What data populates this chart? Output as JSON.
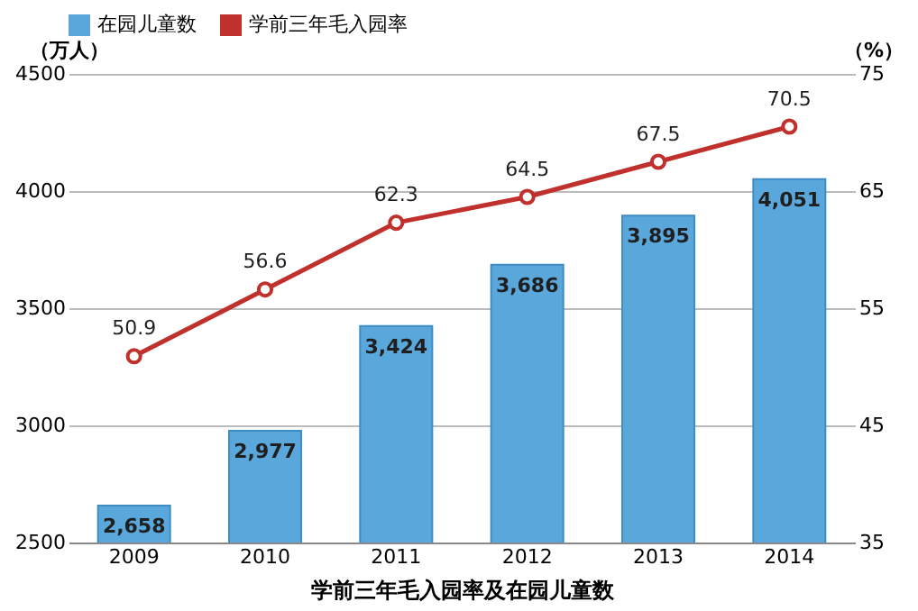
{
  "chart_data": {
    "type": "bar",
    "xlabel": "学前三年毛入园率及在园儿童数",
    "ylabel": "（万人）",
    "y2label": "（%）",
    "categories": [
      "2009",
      "2010",
      "2011",
      "2012",
      "2013",
      "2014"
    ],
    "series": [
      {
        "name": "在园儿童数",
        "color": "#5aa7dc",
        "values": [
          2658,
          2977,
          3424,
          3686,
          3895,
          4051
        ],
        "value_labels": [
          "2,658",
          "2,977",
          "3,424",
          "3,686",
          "3,895",
          "4,051"
        ]
      },
      {
        "name": "学前三年毛入园率",
        "type": "line",
        "axis": "y2",
        "color": "#c0302c",
        "marker": "circle",
        "values": [
          50.9,
          56.6,
          62.3,
          64.5,
          67.5,
          70.5
        ],
        "data_labels": true
      }
    ],
    "ylim": [
      2500,
      4500
    ],
    "yticks": [
      2500,
      3000,
      3500,
      4000,
      4500
    ],
    "y2lim": [
      35,
      75
    ],
    "y2ticks": [
      35,
      45,
      55,
      65,
      75
    ],
    "grid": "y",
    "legend": "top"
  }
}
